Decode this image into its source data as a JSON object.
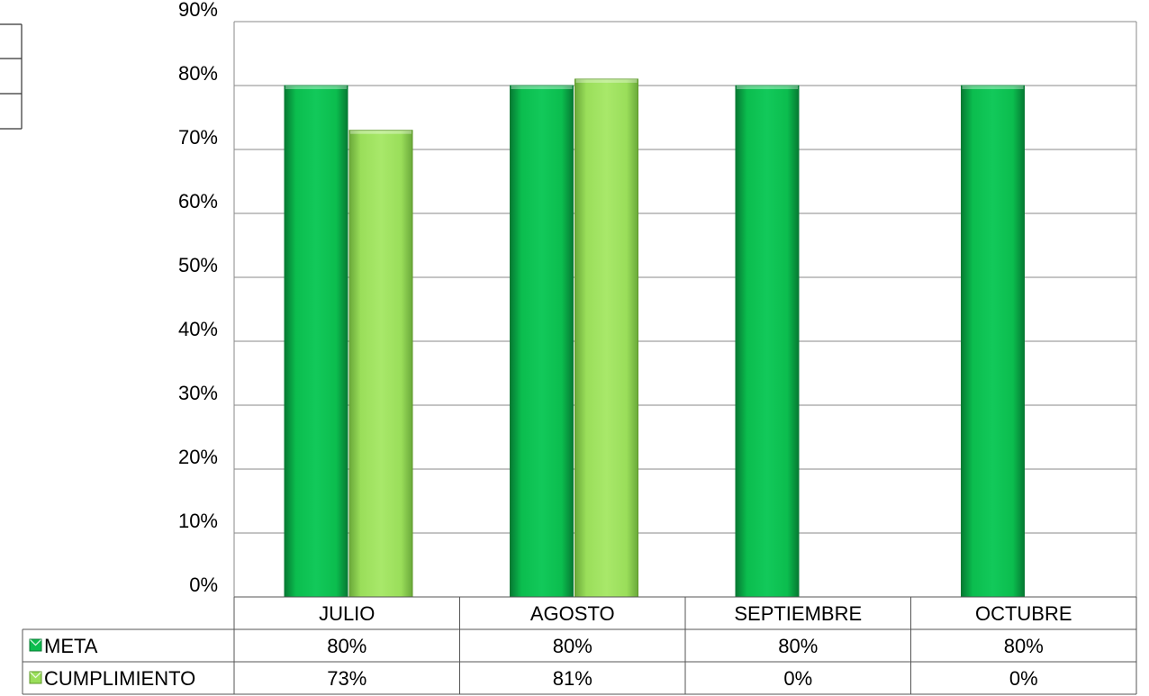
{
  "chart_data": {
    "type": "bar",
    "categories": [
      "JULIO",
      "AGOSTO",
      "SEPTIEMBRE",
      "OCTUBRE"
    ],
    "series": [
      {
        "name": "META",
        "values": [
          80,
          80,
          80,
          80
        ],
        "labels": [
          "80%",
          "80%",
          "80%",
          "80%"
        ],
        "color": "#0bbd4e",
        "edge_color": "#077a33"
      },
      {
        "name": "CUMPLIMIENTO",
        "values": [
          73,
          81,
          0,
          0
        ],
        "labels": [
          "73%",
          "81%",
          "0%",
          "0%"
        ],
        "color": "#9ade5a",
        "edge_color": "#5f9a2a"
      }
    ],
    "ylim": [
      0,
      90
    ],
    "yticks": [
      0,
      10,
      20,
      30,
      40,
      50,
      60,
      70,
      80,
      90
    ],
    "ytick_labels": [
      "0%",
      "10%",
      "20%",
      "30%",
      "40%",
      "50%",
      "60%",
      "70%",
      "80%",
      "90%"
    ],
    "grid": true,
    "legend": "data-table-left",
    "data_table": true
  }
}
